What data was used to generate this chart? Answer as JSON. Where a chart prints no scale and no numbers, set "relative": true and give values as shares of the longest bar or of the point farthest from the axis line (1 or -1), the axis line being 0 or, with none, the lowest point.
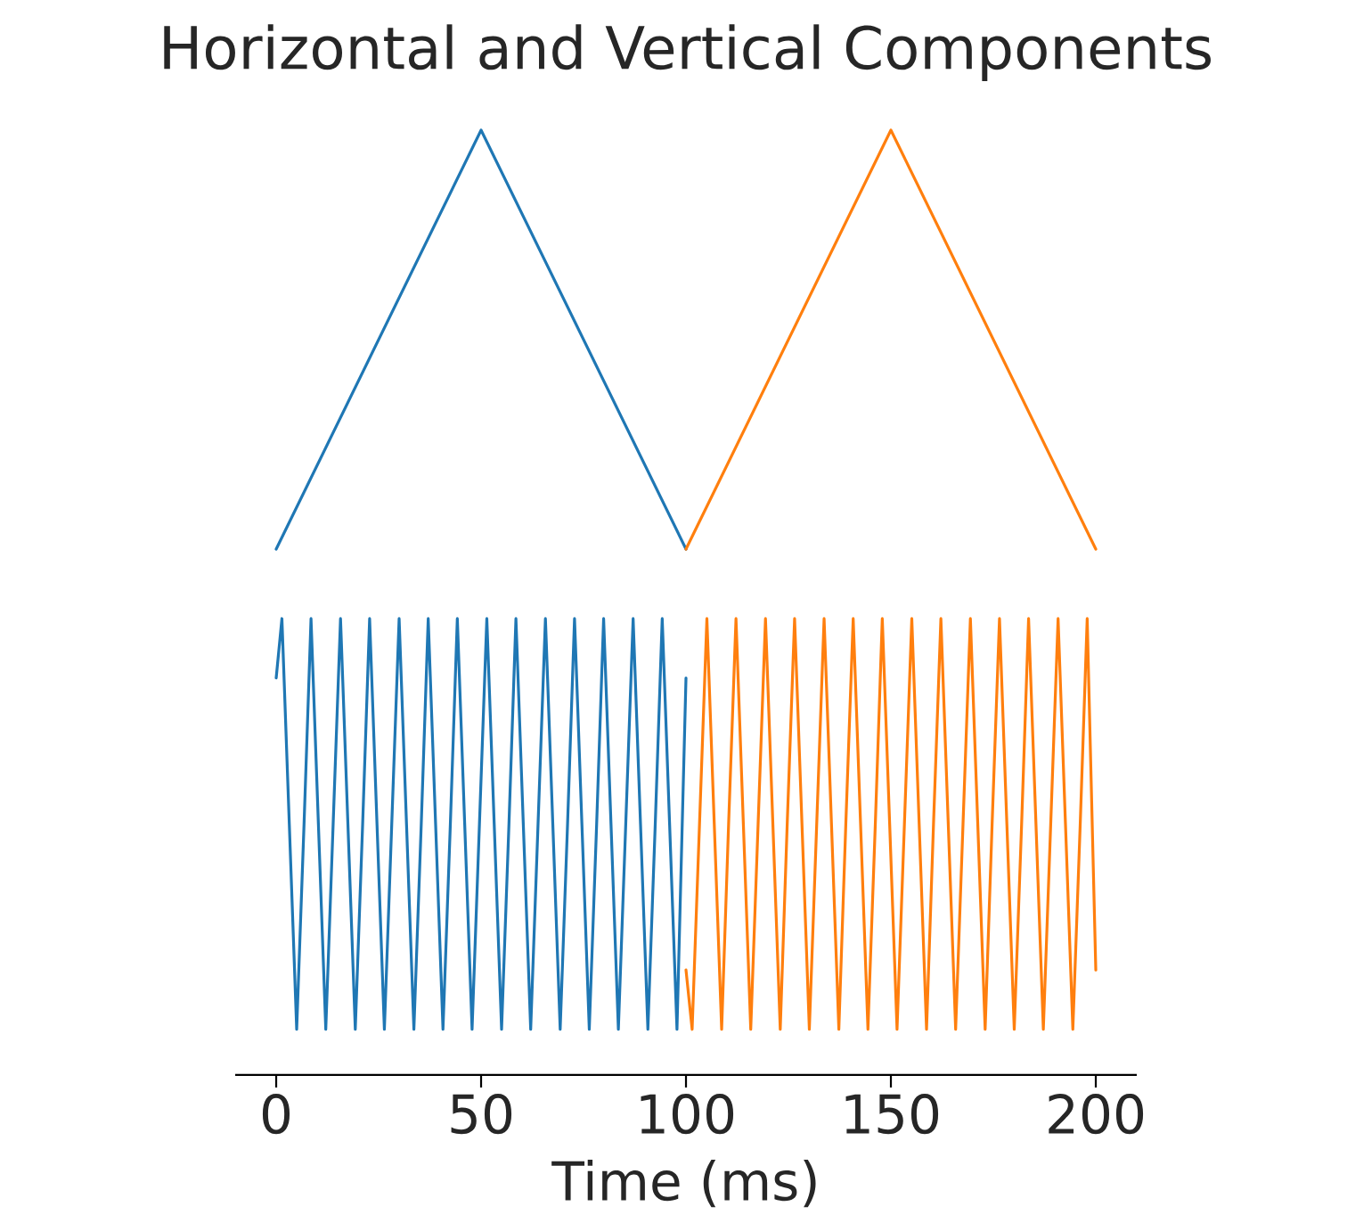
{
  "chart_data": [
    {
      "type": "line",
      "title": "Horizontal and Vertical Components",
      "relative": true,
      "categories": [
        null,
        null,
        null,
        null,
        null
      ],
      "series": [
        {
          "color": "#1f77b4",
          "values": [
            0,
            1,
            0,
            null,
            null
          ]
        },
        {
          "color": "#ff7f0e",
          "values": [
            null,
            null,
            0,
            1,
            0
          ]
        }
      ]
    },
    {
      "type": "line",
      "xlabel": "Time (ms)",
      "relative": true,
      "xlim": [
        -10,
        210
      ],
      "xticks": [
        0,
        50,
        100,
        150,
        200
      ],
      "tick_labels": "x",
      "series": [
        {
          "color": "#1f77b4",
          "x": [
            0,
            1.4,
            3.2,
            5.0,
            6.8,
            8.5,
            10.3,
            12.1,
            13.9,
            15.7,
            17.5,
            19.3,
            21.1,
            22.8,
            24.6,
            26.4,
            28.2,
            30.0,
            31.8,
            33.6,
            35.4,
            37.1,
            38.9,
            40.7,
            42.5,
            44.2,
            46.0,
            47.8,
            49.6,
            51.4,
            53.2,
            55.0,
            56.8,
            58.5,
            60.3,
            62.1,
            63.9,
            65.7,
            67.5,
            69.3,
            71.1,
            72.8,
            74.6,
            76.4,
            78.2,
            79.9,
            81.7,
            83.5,
            85.3,
            87.1,
            88.9,
            90.7,
            92.5,
            94.2,
            96.0,
            97.8,
            100
          ],
          "values": [
            0.87,
            1,
            0.55,
            0.1,
            0.55,
            1,
            0.55,
            0.1,
            0.55,
            1,
            0.55,
            0.1,
            0.55,
            1,
            0.55,
            0.1,
            0.55,
            1,
            0.55,
            0.1,
            0.55,
            1,
            0.55,
            0.1,
            0.55,
            1,
            0.55,
            0.1,
            0.55,
            1,
            0.55,
            0.1,
            0.55,
            1,
            0.55,
            0.1,
            0.55,
            1,
            0.55,
            0.1,
            0.55,
            1,
            0.55,
            0.1,
            0.55,
            1,
            0.55,
            0.1,
            0.55,
            1,
            0.55,
            0.1,
            0.55,
            1,
            0.55,
            0.1,
            0.87
          ]
        },
        {
          "color": "#ff7f0e",
          "x": [
            100,
            101.5,
            103.3,
            105.1,
            106.9,
            108.7,
            110.4,
            112.2,
            114.0,
            115.8,
            117.6,
            119.4,
            121.2,
            123.0,
            124.7,
            126.5,
            128.3,
            130.1,
            131.9,
            133.7,
            135.5,
            137.3,
            139.0,
            140.8,
            142.6,
            144.4,
            146.2,
            147.9,
            149.7,
            151.5,
            153.3,
            155.1,
            156.9,
            158.7,
            160.4,
            162.2,
            164.0,
            165.8,
            167.6,
            169.4,
            171.2,
            173.0,
            174.7,
            176.5,
            178.3,
            180.1,
            181.9,
            183.6,
            185.4,
            187.2,
            189.0,
            190.8,
            192.6,
            194.4,
            196.2,
            197.9,
            200
          ],
          "values": [
            0.23,
            0.1,
            0.55,
            1,
            0.55,
            0.1,
            0.55,
            1,
            0.55,
            0.1,
            0.55,
            1,
            0.55,
            0.1,
            0.55,
            1,
            0.55,
            0.1,
            0.55,
            1,
            0.55,
            0.1,
            0.55,
            1,
            0.55,
            0.1,
            0.55,
            1,
            0.55,
            0.1,
            0.55,
            1,
            0.55,
            0.1,
            0.55,
            1,
            0.55,
            0.1,
            0.55,
            1,
            0.55,
            0.1,
            0.55,
            1,
            0.55,
            0.1,
            0.55,
            1,
            0.55,
            0.1,
            0.55,
            1,
            0.55,
            0.1,
            0.55,
            1,
            0.23
          ]
        }
      ]
    }
  ]
}
